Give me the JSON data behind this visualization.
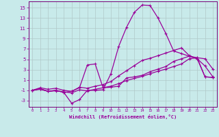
{
  "xlabel": "Windchill (Refroidissement éolien,°C)",
  "background_color": "#c8eaea",
  "grid_color": "#b0c8c8",
  "line_color": "#990099",
  "spine_color": "#770077",
  "xlim": [
    -0.5,
    23.5
  ],
  "ylim": [
    -4.2,
    16.2
  ],
  "xticks": [
    0,
    1,
    2,
    3,
    4,
    5,
    6,
    7,
    8,
    9,
    10,
    11,
    12,
    13,
    14,
    15,
    16,
    17,
    18,
    19,
    20,
    21,
    22,
    23
  ],
  "yticks": [
    -3,
    -1,
    1,
    3,
    5,
    7,
    9,
    11,
    13,
    15
  ],
  "series1_x": [
    0,
    1,
    2,
    3,
    4,
    5,
    6,
    7,
    8,
    9,
    10,
    11,
    12,
    13,
    14,
    15,
    16,
    17,
    18,
    19,
    20,
    21,
    22,
    23
  ],
  "series1_y": [
    -1.0,
    -0.8,
    -1.2,
    -1.1,
    -1.3,
    -1.5,
    -0.9,
    -1.1,
    -0.8,
    -0.5,
    -0.2,
    0.3,
    0.9,
    1.3,
    1.7,
    2.2,
    2.7,
    3.1,
    3.6,
    4.1,
    5.1,
    5.3,
    1.6,
    1.5
  ],
  "series2_x": [
    0,
    1,
    2,
    3,
    4,
    5,
    6,
    7,
    8,
    9,
    10,
    11,
    12,
    13,
    14,
    15,
    16,
    17,
    18,
    19,
    20,
    21,
    22,
    23
  ],
  "series2_y": [
    -1.0,
    -0.7,
    -1.2,
    -1.0,
    -1.4,
    -3.5,
    -2.8,
    -1.0,
    -1.0,
    -0.9,
    2.2,
    7.5,
    11.2,
    14.1,
    15.5,
    15.4,
    13.0,
    10.0,
    6.6,
    6.1,
    5.6,
    5.3,
    5.1,
    3.1
  ],
  "series3_x": [
    0,
    1,
    2,
    3,
    4,
    5,
    6,
    7,
    8,
    9,
    10,
    11,
    12,
    13,
    14,
    15,
    16,
    17,
    18,
    19,
    20,
    21,
    22,
    23
  ],
  "series3_y": [
    -1.0,
    -0.7,
    -1.2,
    -1.0,
    -1.4,
    -1.2,
    -0.5,
    3.9,
    4.1,
    -0.5,
    -0.4,
    -0.2,
    1.4,
    1.6,
    1.9,
    2.6,
    3.1,
    3.6,
    4.6,
    5.1,
    5.6,
    5.1,
    1.6,
    1.5
  ],
  "series4_x": [
    0,
    1,
    2,
    3,
    4,
    5,
    6,
    7,
    8,
    9,
    10,
    11,
    12,
    13,
    14,
    15,
    16,
    17,
    18,
    19,
    20,
    21,
    22,
    23
  ],
  "series4_y": [
    -1.0,
    -0.5,
    -0.8,
    -0.6,
    -1.0,
    -1.2,
    -0.4,
    -0.6,
    -0.2,
    0.1,
    0.7,
    1.8,
    2.8,
    3.8,
    4.8,
    5.2,
    5.7,
    6.2,
    6.7,
    7.2,
    5.7,
    5.1,
    3.7,
    1.6
  ]
}
